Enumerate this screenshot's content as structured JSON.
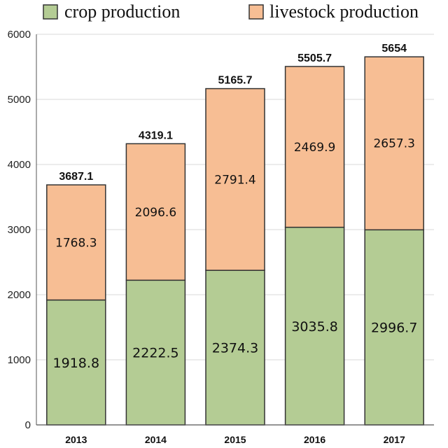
{
  "chart_data": {
    "type": "bar",
    "stacked": true,
    "categories": [
      "2013",
      "2014",
      "2015",
      "2016",
      "2017"
    ],
    "series": [
      {
        "name": "crop production",
        "color": "#b4cc94",
        "values": [
          1918.8,
          2222.5,
          2374.3,
          3035.8,
          2996.7
        ]
      },
      {
        "name": "livestock production",
        "color": "#f7be94",
        "values": [
          1768.3,
          2096.6,
          2791.4,
          2469.9,
          2657.3
        ]
      }
    ],
    "totals": [
      "3687.1",
      "4319.1",
      "5165.7",
      "5505.7",
      "5654"
    ],
    "crop_labels": [
      "1918.8",
      "2222.5",
      "2374.3",
      "3035.8",
      "2996.7"
    ],
    "livestock_labels": [
      "1768.3",
      "2096.6",
      "2791.4",
      "2469.9",
      "2657.3"
    ],
    "ylim": [
      0,
      6000
    ],
    "yticks": [
      "0",
      "1000",
      "2000",
      "3000",
      "4000",
      "5000",
      "6000"
    ],
    "legend_position": "top",
    "grid": true,
    "edge_color": "#333333"
  }
}
